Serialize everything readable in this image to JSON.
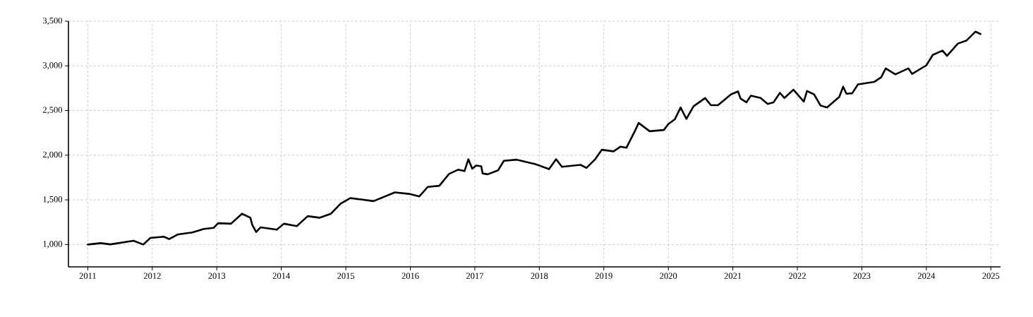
{
  "chart_data": {
    "type": "line",
    "x": [
      2011.0,
      2011.2,
      2011.35,
      2011.71,
      2011.86,
      2011.97,
      2012.18,
      2012.26,
      2012.4,
      2012.62,
      2012.8,
      2012.95,
      2013.02,
      2013.22,
      2013.39,
      2013.52,
      2013.55,
      2013.61,
      2013.68,
      2013.93,
      2014.04,
      2014.24,
      2014.41,
      2014.59,
      2014.77,
      2014.92,
      2015.07,
      2015.43,
      2015.76,
      2015.98,
      2016.14,
      2016.27,
      2016.45,
      2016.6,
      2016.74,
      2016.84,
      2016.9,
      2016.96,
      2017.02,
      2017.1,
      2017.12,
      2017.2,
      2017.36,
      2017.45,
      2017.65,
      2017.95,
      2018.15,
      2018.26,
      2018.35,
      2018.64,
      2018.73,
      2018.86,
      2018.97,
      2019.15,
      2019.26,
      2019.35,
      2019.48,
      2019.54,
      2019.71,
      2019.93,
      2020.0,
      2020.1,
      2020.19,
      2020.28,
      2020.39,
      2020.57,
      2020.66,
      2020.77,
      2020.97,
      2021.08,
      2021.12,
      2021.21,
      2021.28,
      2021.43,
      2021.54,
      2021.63,
      2021.73,
      2021.8,
      2021.94,
      2022.1,
      2022.15,
      2022.26,
      2022.36,
      2022.46,
      2022.65,
      2022.71,
      2022.76,
      2022.85,
      2022.94,
      2023.19,
      2023.3,
      2023.37,
      2023.52,
      2023.72,
      2023.78,
      2024.0,
      2024.1,
      2024.25,
      2024.32,
      2024.49,
      2024.62,
      2024.76,
      2024.84
    ],
    "series": [
      {
        "color": "#000000",
        "values": [
          1000,
          1016,
          1002,
          1042,
          1000,
          1074,
          1088,
          1061,
          1114,
          1135,
          1175,
          1186,
          1239,
          1233,
          1345,
          1300,
          1220,
          1141,
          1193,
          1167,
          1233,
          1207,
          1318,
          1300,
          1345,
          1459,
          1520,
          1486,
          1584,
          1567,
          1539,
          1645,
          1658,
          1790,
          1838,
          1822,
          1955,
          1849,
          1884,
          1876,
          1796,
          1786,
          1830,
          1937,
          1950,
          1897,
          1844,
          1955,
          1870,
          1892,
          1857,
          1950,
          2061,
          2043,
          2096,
          2083,
          2268,
          2361,
          2268,
          2282,
          2348,
          2401,
          2534,
          2406,
          2547,
          2640,
          2560,
          2560,
          2680,
          2714,
          2634,
          2592,
          2666,
          2640,
          2574,
          2592,
          2698,
          2640,
          2733,
          2600,
          2719,
          2680,
          2555,
          2534,
          2653,
          2767,
          2688,
          2693,
          2793,
          2820,
          2873,
          2972,
          2905,
          2972,
          2910,
          3006,
          3123,
          3171,
          3112,
          3250,
          3282,
          3383,
          3356
        ]
      }
    ],
    "xlim": [
      2010.7,
      2025.15
    ],
    "xticks": [
      2011,
      2012,
      2013,
      2014,
      2015,
      2016,
      2017,
      2018,
      2019,
      2020,
      2021,
      2022,
      2023,
      2024,
      2025
    ],
    "ylim": [
      750,
      3500
    ],
    "yticks": [
      {
        "value": 1000,
        "label": "1,000"
      },
      {
        "value": 1500,
        "label": "1,500"
      },
      {
        "value": 2000,
        "label": "2,000"
      },
      {
        "value": 2500,
        "label": "2,500"
      },
      {
        "value": 3000,
        "label": "3,000"
      },
      {
        "value": 3500,
        "label": "3,500"
      }
    ],
    "grid": true,
    "legend": false,
    "marker": "none",
    "line_style": "solid"
  }
}
